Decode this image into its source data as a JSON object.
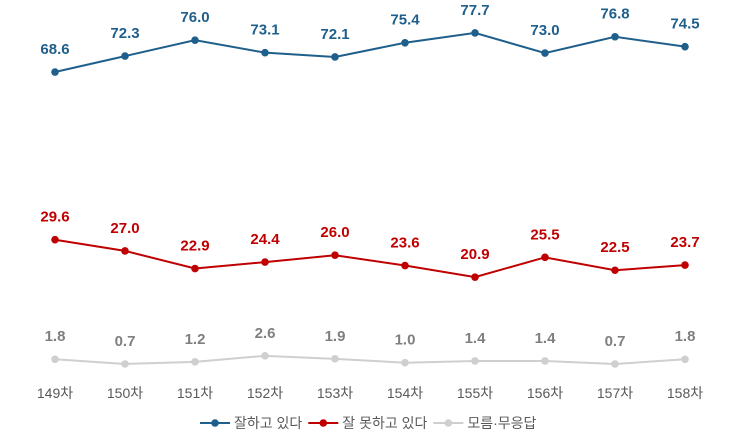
{
  "chart_data": {
    "type": "line",
    "categories": [
      "149차",
      "150차",
      "151차",
      "152차",
      "153차",
      "154차",
      "155차",
      "156차",
      "157차",
      "158차"
    ],
    "series": [
      {
        "name": "잘하고 있다",
        "color": "#1f5f8b",
        "label_color": "#1f5f8b",
        "values": [
          68.6,
          72.3,
          76.0,
          73.1,
          72.1,
          75.4,
          77.7,
          73.0,
          76.8,
          74.5
        ]
      },
      {
        "name": "잘 못하고 있다",
        "color": "#c00000",
        "label_color": "#c00000",
        "values": [
          29.6,
          27.0,
          22.9,
          24.4,
          26.0,
          23.6,
          20.9,
          25.5,
          22.5,
          23.7
        ]
      },
      {
        "name": "모름·무응답",
        "color": "#cfcfcf",
        "label_color": "#7f7f7f",
        "values": [
          1.8,
          0.7,
          1.2,
          2.6,
          1.9,
          1.0,
          1.4,
          1.4,
          0.7,
          1.8
        ]
      }
    ],
    "legend_position": "bottom",
    "grid": false,
    "ylim": [
      0,
      85
    ]
  }
}
